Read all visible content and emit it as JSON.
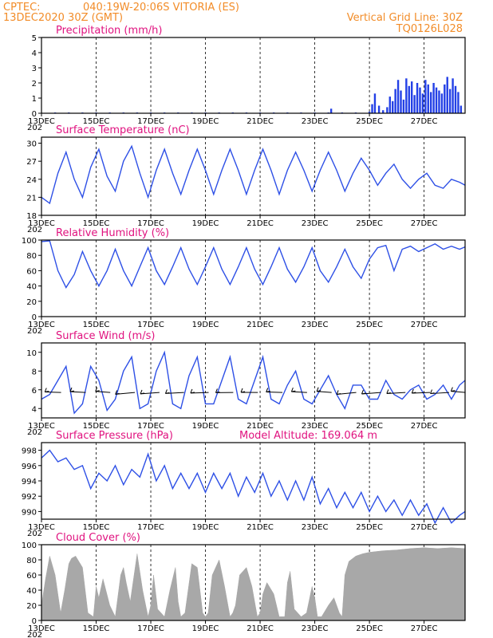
{
  "header": {
    "source": "CPTEC:",
    "location": "040:19W-20:06S  VITORIA (ES)",
    "run": "13DEC2020 30Z (GMT)",
    "grid_note": "Vertical Grid Line: 30Z",
    "code": "TQ0126L028"
  },
  "x_tick_labels": [
    "13DEC",
    "15DEC",
    "17DEC",
    "19DEC",
    "21DEC",
    "23DEC",
    "25DEC",
    "27DEC"
  ],
  "x_tick_suffix": "202",
  "colors": {
    "line": "#2e50e6",
    "bar": "#2340e6",
    "cloud": "#a8a8a8",
    "title": "#e0127f",
    "header": "#f28c28",
    "arrow": "#000000"
  },
  "chart_data": [
    {
      "type": "bar",
      "title": "Precipitation  (mm/h)",
      "ylim": [
        0,
        5
      ],
      "yticks": [
        0,
        1,
        2,
        3,
        4,
        5
      ],
      "xlim_days": [
        0,
        15.5
      ],
      "x": [
        0.5,
        1.0,
        1.5,
        2.0,
        2.5,
        3.0,
        3.5,
        4.0,
        4.5,
        5.0,
        5.5,
        6.0,
        6.5,
        7.0,
        7.5,
        8.0,
        8.5,
        9.0,
        9.5,
        10.0,
        10.5,
        10.6,
        11.0,
        11.5,
        12.0,
        12.1,
        12.2,
        12.35,
        12.5,
        12.65,
        12.75,
        12.85,
        12.95,
        13.05,
        13.15,
        13.25,
        13.35,
        13.45,
        13.55,
        13.65,
        13.75,
        13.85,
        13.95,
        14.05,
        14.15,
        14.25,
        14.35,
        14.45,
        14.55,
        14.65,
        14.75,
        14.85,
        14.95,
        15.05,
        15.15,
        15.25,
        15.35
      ],
      "values": [
        0.05,
        0.05,
        0.05,
        0.05,
        0.05,
        0.05,
        0.05,
        0.05,
        0.05,
        0.05,
        0.05,
        0.05,
        0.05,
        0.05,
        0.05,
        0.05,
        0.05,
        0.05,
        0.05,
        0.05,
        0.05,
        0.3,
        0.05,
        0.05,
        0.1,
        0.6,
        1.3,
        0.5,
        0.2,
        0.4,
        1.1,
        0.8,
        1.6,
        2.2,
        1.5,
        0.9,
        2.3,
        1.8,
        2.1,
        1.2,
        2.0,
        1.7,
        1.3,
        2.2,
        1.9,
        1.4,
        2.0,
        1.7,
        1.5,
        1.3,
        1.9,
        2.4,
        1.6,
        2.3,
        1.8,
        1.4,
        0.5
      ]
    },
    {
      "type": "line",
      "title": "Surface Temperature (nC)",
      "ylim": [
        18,
        31
      ],
      "yticks": [
        18,
        21,
        24,
        27,
        30
      ],
      "xlim_days": [
        0,
        15.5
      ],
      "series": [
        {
          "x": [
            0.0,
            0.3,
            0.6,
            0.9,
            1.2,
            1.5,
            1.8,
            2.1,
            2.4,
            2.7,
            3.0,
            3.3,
            3.6,
            3.9,
            4.2,
            4.5,
            4.8,
            5.1,
            5.4,
            5.7,
            6.0,
            6.3,
            6.6,
            6.9,
            7.2,
            7.5,
            7.8,
            8.1,
            8.4,
            8.7,
            9.0,
            9.3,
            9.6,
            9.9,
            10.2,
            10.5,
            10.8,
            11.1,
            11.4,
            11.7,
            12.0,
            12.3,
            12.6,
            12.9,
            13.2,
            13.5,
            13.8,
            14.1,
            14.4,
            14.7,
            15.0,
            15.3,
            15.5
          ],
          "values": [
            21.0,
            20.0,
            25.0,
            28.5,
            24.0,
            21.0,
            26.0,
            29.0,
            24.5,
            22.0,
            27.0,
            29.5,
            25.0,
            21.0,
            25.5,
            29.0,
            25.0,
            21.5,
            25.5,
            29.0,
            25.5,
            21.5,
            25.5,
            29.0,
            25.5,
            21.5,
            25.5,
            29.0,
            25.5,
            21.5,
            25.5,
            28.5,
            25.5,
            22.0,
            25.5,
            28.5,
            25.5,
            22.0,
            25.0,
            27.5,
            25.5,
            23.0,
            25.0,
            26.5,
            24.0,
            22.5,
            24.0,
            25.0,
            23.0,
            22.5,
            24.0,
            23.5,
            23.0
          ]
        }
      ]
    },
    {
      "type": "line",
      "title": "Relative Humidity  (%)",
      "ylim": [
        0,
        100
      ],
      "yticks": [
        0,
        20,
        40,
        60,
        80,
        100
      ],
      "xlim_days": [
        0,
        15.5
      ],
      "series": [
        {
          "x": [
            0.0,
            0.3,
            0.6,
            0.9,
            1.2,
            1.5,
            1.8,
            2.1,
            2.4,
            2.7,
            3.0,
            3.3,
            3.6,
            3.9,
            4.2,
            4.5,
            4.8,
            5.1,
            5.4,
            5.7,
            6.0,
            6.3,
            6.6,
            6.9,
            7.2,
            7.5,
            7.8,
            8.1,
            8.4,
            8.7,
            9.0,
            9.3,
            9.6,
            9.9,
            10.2,
            10.5,
            10.8,
            11.1,
            11.4,
            11.7,
            12.0,
            12.3,
            12.6,
            12.9,
            13.2,
            13.5,
            13.8,
            14.1,
            14.4,
            14.7,
            15.0,
            15.3,
            15.5
          ],
          "values": [
            98.0,
            99.0,
            60.0,
            38.0,
            55.0,
            85.0,
            60.0,
            40.0,
            60.0,
            88.0,
            60.0,
            40.0,
            65.0,
            90.0,
            60.0,
            42.0,
            65.0,
            90.0,
            62.0,
            42.0,
            65.0,
            90.0,
            62.0,
            42.0,
            65.0,
            90.0,
            62.0,
            42.0,
            65.0,
            90.0,
            62.0,
            45.0,
            65.0,
            90.0,
            60.0,
            45.0,
            65.0,
            88.0,
            65.0,
            50.0,
            75.0,
            90.0,
            93.0,
            60.0,
            88.0,
            92.0,
            85.0,
            90.0,
            95.0,
            88.0,
            92.0,
            88.0,
            91.0
          ]
        }
      ]
    },
    {
      "type": "line",
      "title": "Surface Wind  (m/s)",
      "ylim": [
        3,
        11
      ],
      "yticks": [
        4,
        6,
        8,
        10
      ],
      "xlim_days": [
        0,
        15.5
      ],
      "series": [
        {
          "x": [
            0.0,
            0.3,
            0.6,
            0.9,
            1.2,
            1.5,
            1.8,
            2.1,
            2.4,
            2.7,
            3.0,
            3.3,
            3.6,
            3.9,
            4.2,
            4.5,
            4.8,
            5.1,
            5.4,
            5.7,
            6.0,
            6.3,
            6.6,
            6.9,
            7.2,
            7.5,
            7.8,
            8.1,
            8.4,
            8.7,
            9.0,
            9.3,
            9.6,
            9.9,
            10.2,
            10.5,
            10.8,
            11.1,
            11.4,
            11.7,
            12.0,
            12.3,
            12.6,
            12.9,
            13.2,
            13.5,
            13.8,
            14.1,
            14.4,
            14.7,
            15.0,
            15.3,
            15.5
          ],
          "values": [
            5.0,
            5.5,
            7.0,
            8.5,
            3.5,
            4.5,
            8.5,
            7.0,
            3.8,
            5.0,
            8.0,
            9.5,
            4.0,
            4.5,
            8.0,
            10.0,
            4.5,
            4.0,
            7.5,
            9.5,
            4.5,
            4.5,
            7.0,
            9.5,
            5.0,
            4.5,
            7.0,
            9.5,
            5.0,
            4.5,
            6.5,
            8.0,
            5.0,
            4.5,
            6.0,
            7.5,
            5.5,
            4.0,
            6.5,
            6.5,
            5.0,
            5.0,
            7.0,
            5.5,
            5.0,
            6.0,
            6.5,
            5.0,
            5.5,
            6.5,
            5.0,
            6.5,
            7.0
          ]
        }
      ],
      "arrows_x": [
        0.6,
        1.5,
        2.4,
        3.3,
        4.2,
        5.1,
        6.0,
        6.9,
        7.8,
        8.7,
        9.6,
        10.5,
        11.4,
        12.3,
        13.2,
        14.1,
        14.8,
        15.4
      ]
    },
    {
      "type": "line",
      "title": "Surface Pressure (hPa)",
      "annotation": "Model Altitude: 169.064 m",
      "ylim": [
        989,
        999
      ],
      "yticks": [
        990,
        992,
        994,
        996,
        998
      ],
      "xlim_days": [
        0,
        15.5
      ],
      "series": [
        {
          "x": [
            0.0,
            0.3,
            0.6,
            0.9,
            1.2,
            1.5,
            1.8,
            2.1,
            2.4,
            2.7,
            3.0,
            3.3,
            3.6,
            3.9,
            4.2,
            4.5,
            4.8,
            5.1,
            5.4,
            5.7,
            6.0,
            6.3,
            6.6,
            6.9,
            7.2,
            7.5,
            7.8,
            8.1,
            8.4,
            8.7,
            9.0,
            9.3,
            9.6,
            9.9,
            10.2,
            10.5,
            10.8,
            11.1,
            11.4,
            11.7,
            12.0,
            12.3,
            12.6,
            12.9,
            13.2,
            13.5,
            13.8,
            14.1,
            14.4,
            14.7,
            15.0,
            15.3,
            15.5
          ],
          "values": [
            997.0,
            998.0,
            996.5,
            997.0,
            995.5,
            996.0,
            993.0,
            995.0,
            994.0,
            996.0,
            993.5,
            995.5,
            994.5,
            997.5,
            994.0,
            996.0,
            993.0,
            995.0,
            993.0,
            995.0,
            992.5,
            995.0,
            993.0,
            995.0,
            992.0,
            994.5,
            992.5,
            995.0,
            992.0,
            994.0,
            991.5,
            994.0,
            991.5,
            994.5,
            991.0,
            993.0,
            990.5,
            992.5,
            990.5,
            992.5,
            990.0,
            992.0,
            990.0,
            991.5,
            989.5,
            991.5,
            989.5,
            991.0,
            988.5,
            990.5,
            988.5,
            989.5,
            990.0
          ]
        }
      ]
    },
    {
      "type": "area",
      "title": "Cloud Cover  (%)",
      "ylim": [
        0,
        100
      ],
      "yticks": [
        0,
        20,
        40,
        60,
        80,
        100
      ],
      "xlim_days": [
        0,
        15.5
      ],
      "x": [
        0.0,
        0.15,
        0.3,
        0.5,
        0.7,
        0.85,
        1.0,
        1.1,
        1.25,
        1.5,
        1.7,
        1.9,
        2.0,
        2.1,
        2.25,
        2.5,
        2.7,
        2.9,
        3.0,
        3.1,
        3.25,
        3.5,
        3.7,
        3.9,
        4.0,
        4.1,
        4.25,
        4.5,
        4.7,
        4.9,
        5.0,
        5.1,
        5.25,
        5.5,
        5.7,
        5.9,
        6.0,
        6.1,
        6.25,
        6.5,
        6.7,
        6.9,
        7.0,
        7.1,
        7.25,
        7.5,
        7.7,
        7.9,
        8.0,
        8.1,
        8.25,
        8.5,
        8.7,
        8.9,
        9.0,
        9.1,
        9.25,
        9.5,
        9.7,
        9.9,
        10.0,
        10.1,
        10.25,
        10.5,
        10.7,
        10.9,
        11.0,
        11.1,
        11.25,
        11.5,
        11.75,
        12.0,
        12.5,
        13.0,
        13.5,
        14.0,
        14.5,
        15.0,
        15.5
      ],
      "values": [
        20,
        55,
        85,
        60,
        10,
        40,
        75,
        82,
        85,
        70,
        10,
        5,
        45,
        30,
        55,
        20,
        5,
        60,
        70,
        50,
        25,
        88,
        40,
        5,
        20,
        60,
        15,
        5,
        40,
        70,
        25,
        5,
        10,
        75,
        70,
        10,
        5,
        10,
        60,
        80,
        45,
        5,
        10,
        20,
        60,
        70,
        45,
        5,
        10,
        35,
        50,
        35,
        5,
        5,
        50,
        65,
        15,
        5,
        10,
        45,
        30,
        5,
        5,
        20,
        30,
        10,
        5,
        60,
        78,
        85,
        88,
        90,
        92,
        93,
        95,
        96,
        95,
        96,
        95
      ]
    }
  ]
}
